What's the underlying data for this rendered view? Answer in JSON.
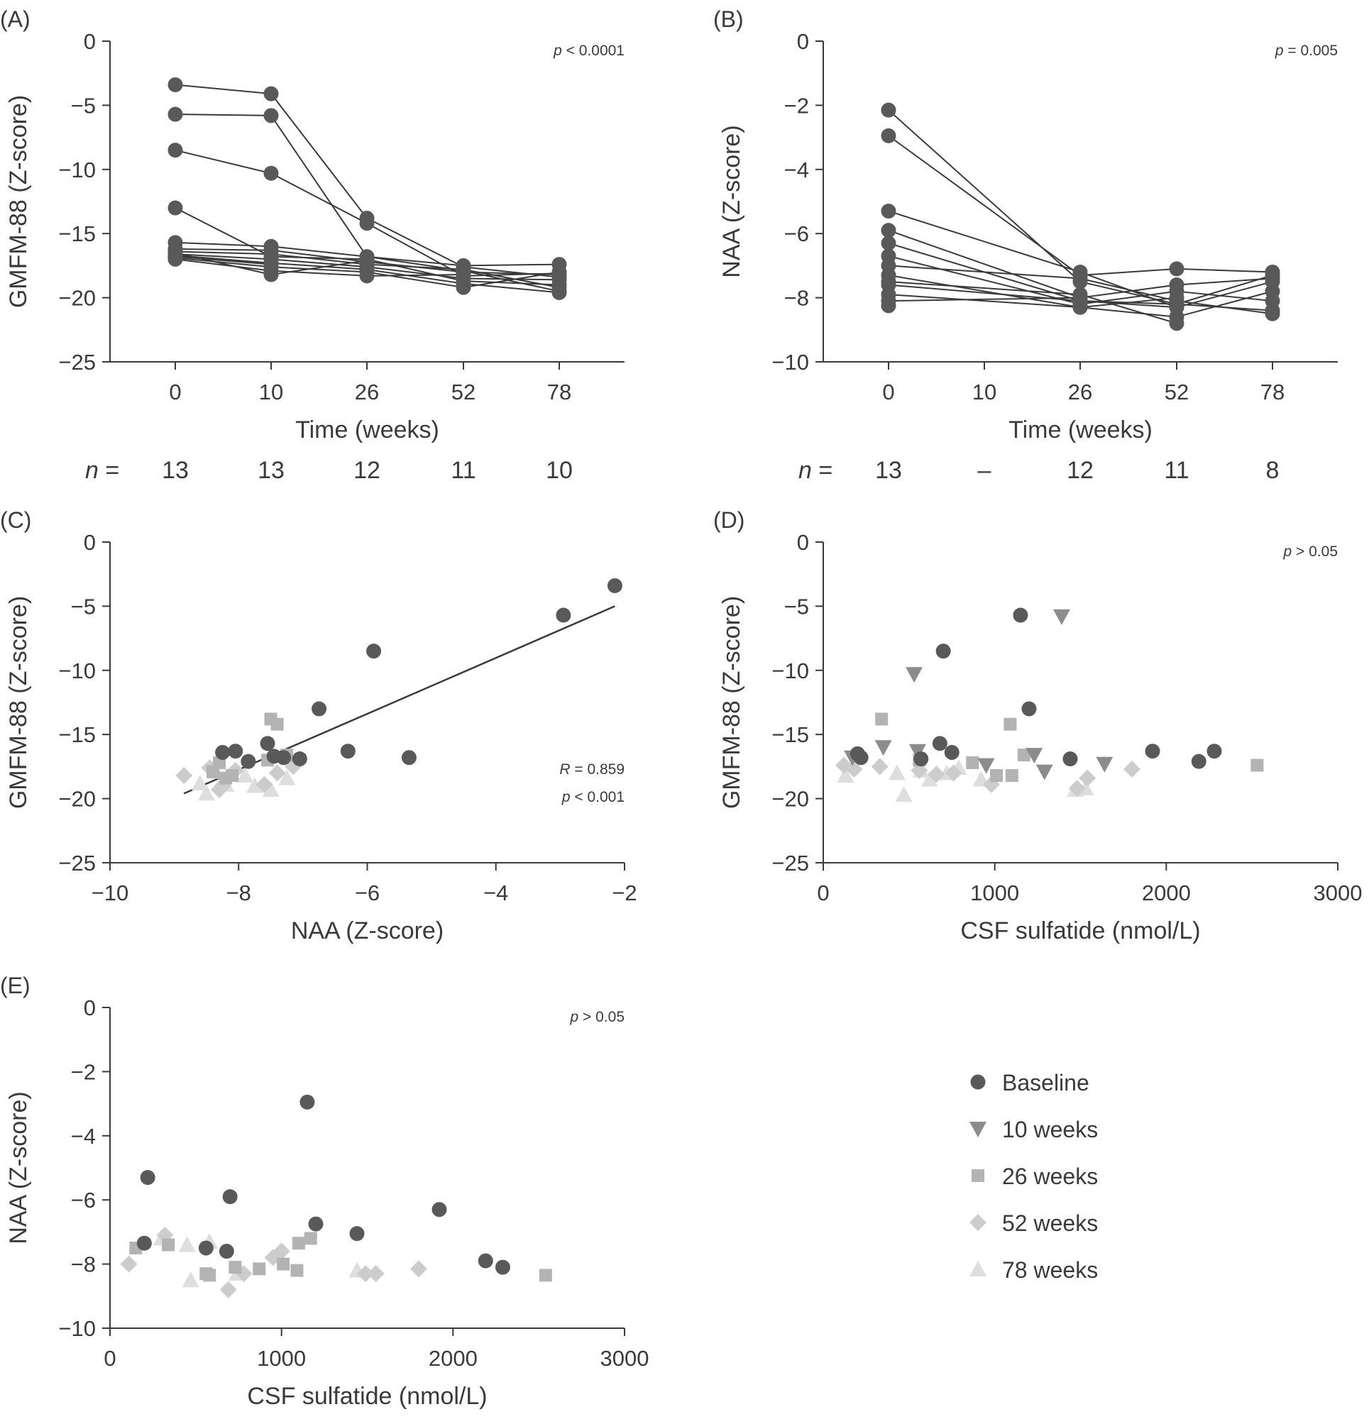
{
  "figure": {
    "legend": [
      {
        "key": "baseline",
        "label": "Baseline",
        "marker": "circle",
        "color": "#595959"
      },
      {
        "key": "w10",
        "label": "10 weeks",
        "marker": "triangle-down",
        "color": "#8c8c8c"
      },
      {
        "key": "w26",
        "label": "26 weeks",
        "marker": "square",
        "color": "#b3b3b3"
      },
      {
        "key": "w52",
        "label": "52 weeks",
        "marker": "diamond",
        "color": "#cccccc"
      },
      {
        "key": "w78",
        "label": "78 weeks",
        "marker": "triangle-up",
        "color": "#dedede"
      }
    ]
  },
  "chart_data": [
    {
      "id": "A",
      "panel_label": "(A)",
      "type": "line",
      "xlabel": "Time (weeks)",
      "ylabel": "GMFM-88 (Z-score)",
      "categories": [
        "0",
        "10",
        "26",
        "52",
        "78"
      ],
      "ylim": [
        -25,
        0
      ],
      "yticks": [
        0,
        -5,
        -10,
        -15,
        -20,
        -25
      ],
      "ytick_labels": [
        "0",
        "−5",
        "−10",
        "−15",
        "−20",
        "−25"
      ],
      "annotation": {
        "italic": "p",
        "text": " < 0.0001"
      },
      "n_label": "n",
      "n_values": [
        "13",
        "13",
        "12",
        "11",
        "10"
      ],
      "series": [
        {
          "values": [
            -3.4,
            -4.1,
            -13.8,
            -17.6,
            -18.4
          ]
        },
        {
          "values": [
            -5.7,
            -5.8,
            -16.8,
            -17.9,
            -19.5
          ]
        },
        {
          "values": [
            -8.5,
            -10.3,
            -14.2,
            -18.3,
            -18.1
          ]
        },
        {
          "values": [
            -13.0,
            -16.8,
            -17.0,
            -18.7,
            -19.0
          ]
        },
        {
          "values": [
            -15.7,
            -16.0,
            -16.8,
            -17.5,
            -17.4
          ]
        },
        {
          "values": [
            -16.2,
            -16.3,
            -17.2,
            -18.0,
            -18.2
          ]
        },
        {
          "values": [
            -16.4,
            -16.6,
            -17.4,
            -17.8,
            -19.2
          ]
        },
        {
          "values": [
            -16.6,
            -17.0,
            -17.6,
            -18.5,
            -18.6
          ]
        },
        {
          "values": [
            -16.7,
            -17.3,
            -17.8,
            -18.9,
            -19.6
          ]
        },
        {
          "values": [
            -16.9,
            -17.6,
            -18.0,
            -19.2,
            -18.0
          ]
        },
        {
          "values": [
            -17.0,
            -17.9,
            -18.3,
            -18.2,
            null
          ]
        },
        {
          "values": [
            -16.5,
            -18.2,
            -17.1,
            null,
            null
          ]
        },
        {
          "values": [
            -16.8,
            -17.4,
            null,
            null,
            null
          ]
        }
      ]
    },
    {
      "id": "B",
      "panel_label": "(B)",
      "type": "line",
      "xlabel": "Time (weeks)",
      "ylabel": "NAA (Z-score)",
      "categories": [
        "0",
        "10",
        "26",
        "52",
        "78"
      ],
      "ylim": [
        -10,
        0
      ],
      "yticks": [
        0,
        -2,
        -4,
        -6,
        -8,
        -10
      ],
      "ytick_labels": [
        "0",
        "−2",
        "−4",
        "−6",
        "−8",
        "−10"
      ],
      "annotation": {
        "italic": "p",
        "text": " = 0.005"
      },
      "n_label": "n",
      "n_values": [
        "13",
        "–",
        "12",
        "11",
        "8"
      ],
      "series": [
        {
          "values": [
            -2.15,
            null,
            -7.5,
            -8.2,
            -7.3
          ]
        },
        {
          "values": [
            -2.95,
            null,
            -7.3,
            -7.1,
            -7.2
          ]
        },
        {
          "values": [
            -5.3,
            null,
            -7.2,
            -8.3,
            -7.5
          ]
        },
        {
          "values": [
            -5.9,
            null,
            -8.0,
            -7.6,
            -7.4
          ]
        },
        {
          "values": [
            -6.3,
            null,
            -8.1,
            -8.2,
            -8.4
          ]
        },
        {
          "values": [
            -6.7,
            null,
            -8.2,
            -7.8,
            -8.1
          ]
        },
        {
          "values": [
            -7.0,
            null,
            -7.4,
            -8.1,
            -8.5
          ]
        },
        {
          "values": [
            -7.3,
            null,
            -8.3,
            -8.6,
            -7.8
          ]
        },
        {
          "values": [
            -7.5,
            null,
            -7.9,
            -8.8,
            null
          ]
        },
        {
          "values": [
            -7.6,
            null,
            -8.1,
            -8.3,
            null
          ]
        },
        {
          "values": [
            -7.9,
            null,
            -8.3,
            -8.0,
            null
          ]
        },
        {
          "values": [
            -8.1,
            null,
            -8.0,
            null,
            null
          ]
        },
        {
          "values": [
            -8.25,
            null,
            null,
            null,
            null
          ]
        }
      ]
    },
    {
      "id": "C",
      "panel_label": "(C)",
      "type": "scatter",
      "xlabel": "NAA (Z-score)",
      "ylabel": "GMFM-88 (Z-score)",
      "xlim": [
        -10,
        -2
      ],
      "ylim": [
        -25,
        0
      ],
      "xticks": [
        -10,
        -8,
        -6,
        -4,
        -2
      ],
      "xtick_labels": [
        "−10",
        "−8",
        "−6",
        "−4",
        "−2"
      ],
      "yticks": [
        0,
        -5,
        -10,
        -15,
        -20,
        -25
      ],
      "ytick_labels": [
        "0",
        "−5",
        "−10",
        "−15",
        "−20",
        "−25"
      ],
      "annotations": [
        {
          "italic": "R",
          "text": " = 0.859"
        },
        {
          "italic": "p",
          "text": " < 0.001"
        }
      ],
      "fit_line": {
        "x": [
          -8.85,
          -2.15
        ],
        "y": [
          -19.6,
          -5.0
        ]
      },
      "series": [
        {
          "group": "baseline",
          "x": [
            -2.15,
            -2.95,
            -5.9,
            -6.75,
            -6.3,
            -5.35,
            -7.55,
            -7.45,
            -7.3,
            -7.05,
            -7.85,
            -8.05,
            -8.25
          ],
          "y": [
            -3.4,
            -5.7,
            -8.5,
            -13.0,
            -16.3,
            -16.8,
            -15.7,
            -16.7,
            -16.8,
            -16.9,
            -17.1,
            -16.3,
            -16.4
          ]
        },
        {
          "group": "w26",
          "x": [
            -7.5,
            -7.4,
            -7.55,
            -7.25,
            -8.3,
            -8.1,
            -8.2,
            -8.4
          ],
          "y": [
            -13.8,
            -14.2,
            -17.0,
            -16.6,
            -17.2,
            -18.2,
            -18.4,
            -17.9
          ]
        },
        {
          "group": "w52",
          "x": [
            -8.85,
            -8.45,
            -8.25,
            -8.05,
            -7.6,
            -7.15,
            -8.3,
            -7.4
          ],
          "y": [
            -18.2,
            -17.6,
            -19.0,
            -17.8,
            -18.9,
            -17.5,
            -19.3,
            -18.0
          ]
        },
        {
          "group": "w78",
          "x": [
            -8.5,
            -8.2,
            -7.75,
            -7.5,
            -7.25,
            -8.35,
            -7.9,
            -8.6
          ],
          "y": [
            -19.6,
            -18.9,
            -19.0,
            -19.3,
            -18.4,
            -17.9,
            -18.2,
            -18.8
          ]
        }
      ]
    },
    {
      "id": "D",
      "panel_label": "(D)",
      "type": "scatter",
      "xlabel": "CSF sulfatide (nmol/L)",
      "ylabel": "GMFM-88 (Z-score)",
      "xlim": [
        0,
        3000
      ],
      "ylim": [
        -25,
        0
      ],
      "xticks": [
        0,
        1000,
        2000,
        3000
      ],
      "xtick_labels": [
        "0",
        "1000",
        "2000",
        "3000"
      ],
      "yticks": [
        0,
        -5,
        -10,
        -15,
        -20,
        -25
      ],
      "ytick_labels": [
        "0",
        "−5",
        "−10",
        "−15",
        "−20",
        "−25"
      ],
      "annotation": {
        "italic": "p",
        "text": " > 0.05"
      },
      "series": [
        {
          "group": "baseline",
          "x": [
            1150,
            700,
            1200,
            680,
            750,
            200,
            220,
            570,
            1440,
            1920,
            2190,
            2280
          ],
          "y": [
            -5.7,
            -8.5,
            -13.0,
            -15.7,
            -16.4,
            -16.5,
            -16.8,
            -16.9,
            -16.9,
            -16.3,
            -17.1,
            -16.3
          ]
        },
        {
          "group": "w10",
          "x": [
            1390,
            530,
            350,
            1230,
            550,
            950,
            1290,
            1640,
            170
          ],
          "y": [
            -5.8,
            -10.3,
            -16.0,
            -16.6,
            -16.3,
            -17.4,
            -17.9,
            -17.3,
            -16.8
          ]
        },
        {
          "group": "w26",
          "x": [
            340,
            1090,
            1170,
            560,
            870,
            1100,
            1010,
            2530
          ],
          "y": [
            -13.8,
            -14.2,
            -16.6,
            -17.0,
            -17.2,
            -18.2,
            -18.2,
            -17.4
          ]
        },
        {
          "group": "w52",
          "x": [
            120,
            180,
            330,
            560,
            660,
            760,
            980,
            1480,
            1540,
            1800
          ],
          "y": [
            -17.4,
            -17.7,
            -17.5,
            -17.8,
            -18.1,
            -18.0,
            -18.9,
            -19.2,
            -18.4,
            -17.7
          ]
        },
        {
          "group": "w78",
          "x": [
            130,
            430,
            470,
            570,
            620,
            720,
            790,
            920,
            1470,
            1530
          ],
          "y": [
            -18.2,
            -18.0,
            -19.7,
            -17.8,
            -18.5,
            -18.0,
            -17.6,
            -18.5,
            -19.3,
            -19.2
          ]
        }
      ]
    },
    {
      "id": "E",
      "panel_label": "(E)",
      "type": "scatter",
      "xlabel": "CSF sulfatide (nmol/L)",
      "ylabel": "NAA (Z-score)",
      "xlim": [
        0,
        3000
      ],
      "ylim": [
        -10,
        0
      ],
      "xticks": [
        0,
        1000,
        2000,
        3000
      ],
      "xtick_labels": [
        "0",
        "1000",
        "2000",
        "3000"
      ],
      "yticks": [
        0,
        -2,
        -4,
        -6,
        -8,
        -10
      ],
      "ytick_labels": [
        "0",
        "−2",
        "−4",
        "−6",
        "−8",
        "−10"
      ],
      "annotation": {
        "italic": "p",
        "text": " > 0.05"
      },
      "series": [
        {
          "group": "baseline",
          "x": [
            1150,
            220,
            700,
            1200,
            1920,
            1440,
            200,
            560,
            680,
            2190,
            2290
          ],
          "y": [
            -2.95,
            -5.3,
            -5.9,
            -6.75,
            -6.3,
            -7.05,
            -7.35,
            -7.5,
            -7.6,
            -7.9,
            -8.1
          ]
        },
        {
          "group": "w26",
          "x": [
            150,
            340,
            560,
            580,
            730,
            870,
            1010,
            1100,
            1170,
            1090,
            2540
          ],
          "y": [
            -7.5,
            -7.4,
            -8.3,
            -8.35,
            -8.1,
            -8.15,
            -8.0,
            -7.35,
            -7.2,
            -8.2,
            -8.35
          ]
        },
        {
          "group": "w52",
          "x": [
            110,
            320,
            690,
            780,
            950,
            1000,
            1490,
            1550,
            1800
          ],
          "y": [
            -8.0,
            -7.1,
            -8.8,
            -8.3,
            -7.8,
            -7.6,
            -8.3,
            -8.3,
            -8.15
          ]
        },
        {
          "group": "w78",
          "x": [
            300,
            450,
            470,
            580,
            740,
            1440
          ],
          "y": [
            -7.2,
            -7.4,
            -8.5,
            -7.3,
            -8.3,
            -8.2
          ]
        }
      ]
    }
  ]
}
